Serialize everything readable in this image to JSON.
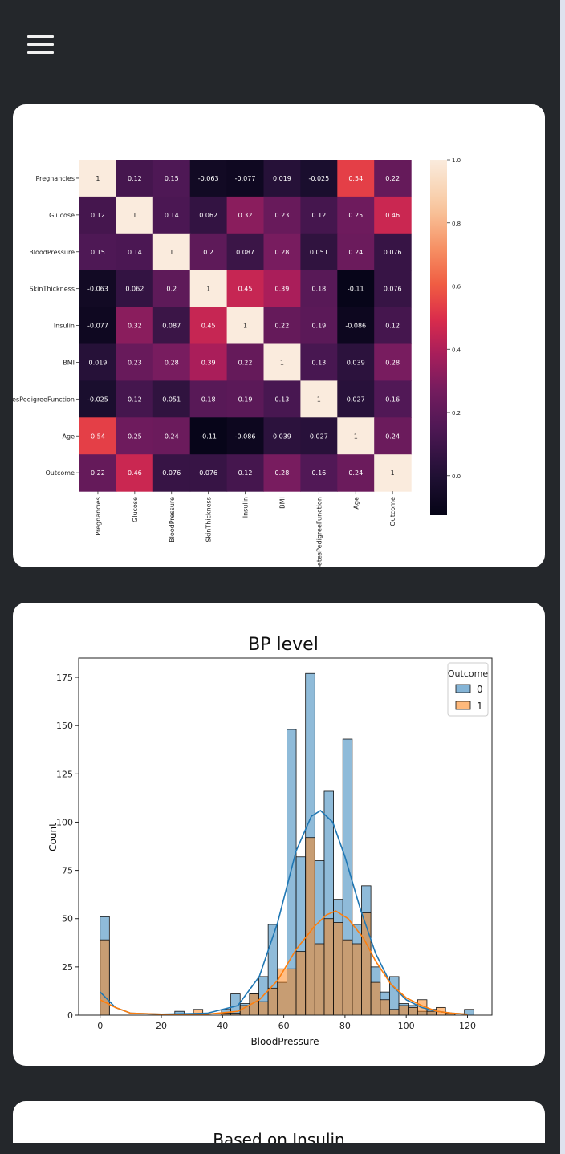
{
  "nav": {
    "menu_icon": "hamburger-icon"
  },
  "heatmap": {
    "labels": [
      "Pregnancies",
      "Glucose",
      "BloodPressure",
      "SkinThickness",
      "Insulin",
      "BMI",
      "DiabetesPedigreeFunction",
      "Age",
      "Outcome"
    ],
    "matrix": [
      [
        1,
        0.12,
        0.15,
        -0.063,
        -0.077,
        0.019,
        -0.025,
        0.54,
        0.22
      ],
      [
        0.12,
        1,
        0.14,
        0.062,
        0.32,
        0.23,
        0.12,
        0.25,
        0.46
      ],
      [
        0.15,
        0.14,
        1,
        0.2,
        0.087,
        0.28,
        0.051,
        0.24,
        0.076
      ],
      [
        -0.063,
        0.062,
        0.2,
        1,
        0.45,
        0.39,
        0.18,
        -0.11,
        0.076
      ],
      [
        -0.077,
        0.32,
        0.087,
        0.45,
        1,
        0.22,
        0.19,
        -0.086,
        0.12
      ],
      [
        0.019,
        0.23,
        0.28,
        0.39,
        0.22,
        1,
        0.13,
        0.039,
        0.28
      ],
      [
        -0.025,
        0.12,
        0.051,
        0.18,
        0.19,
        0.13,
        1,
        0.027,
        0.16
      ],
      [
        0.54,
        0.25,
        0.24,
        -0.11,
        -0.086,
        0.039,
        0.027,
        1,
        0.24
      ],
      [
        0.22,
        0.46,
        0.076,
        0.076,
        0.12,
        0.28,
        0.16,
        0.24,
        1
      ]
    ],
    "colorbar_ticks": [
      "1.0",
      "0.8",
      "0.6",
      "0.4",
      "0.2",
      "0.0"
    ]
  },
  "bp_chart": {
    "title": "BP level",
    "xlabel": "BloodPressure",
    "ylabel": "Count",
    "legend_title": "Outcome",
    "legend_entries": [
      "0",
      "1"
    ],
    "colors": {
      "series0": "#1f77b4",
      "series1": "#ff7f0e"
    }
  },
  "chart_data": {
    "type": "bar",
    "title": "BP level",
    "xlabel": "BloodPressure",
    "ylabel": "Count",
    "xlim": [
      -7,
      128
    ],
    "ylim": [
      0,
      185
    ],
    "x_ticks": [
      0,
      20,
      40,
      60,
      80,
      100,
      120
    ],
    "y_ticks": [
      0,
      25,
      50,
      75,
      100,
      125,
      150,
      175
    ],
    "bin_width": 3.05,
    "bin_starts": [
      0,
      24.4,
      30.5,
      36.6,
      39.65,
      42.7,
      45.75,
      48.8,
      51.85,
      54.9,
      57.95,
      61,
      64.05,
      67.1,
      70.15,
      73.2,
      76.25,
      79.3,
      82.35,
      85.4,
      88.45,
      91.5,
      94.55,
      97.6,
      100.65,
      103.7,
      106.75,
      109.8,
      112.85,
      119
    ],
    "series": [
      {
        "name": "0",
        "values": [
          51,
          2,
          0,
          0,
          3,
          11,
          6,
          11,
          20,
          47,
          17,
          148,
          82,
          177,
          80,
          116,
          60,
          143,
          47,
          67,
          25,
          12,
          20,
          6,
          5,
          2,
          3,
          0,
          1,
          3
        ]
      },
      {
        "name": "1",
        "values": [
          39,
          0,
          3,
          0,
          1,
          1,
          5,
          11,
          7,
          14,
          24,
          24,
          33,
          92,
          37,
          50,
          48,
          39,
          37,
          53,
          17,
          8,
          3,
          5,
          4,
          8,
          2,
          4,
          1,
          0
        ]
      }
    ],
    "kde": [
      {
        "name": "0",
        "points": [
          [
            0,
            12
          ],
          [
            5,
            4
          ],
          [
            10,
            1
          ],
          [
            20,
            0.5
          ],
          [
            35,
            1
          ],
          [
            45,
            5
          ],
          [
            52,
            20
          ],
          [
            58,
            48
          ],
          [
            64,
            85
          ],
          [
            69,
            103
          ],
          [
            72,
            106
          ],
          [
            76,
            100
          ],
          [
            80,
            82
          ],
          [
            85,
            55
          ],
          [
            90,
            32
          ],
          [
            95,
            16
          ],
          [
            100,
            8
          ],
          [
            105,
            4
          ],
          [
            110,
            2
          ],
          [
            115,
            1
          ],
          [
            120,
            0.5
          ]
        ]
      },
      {
        "name": "1",
        "points": [
          [
            0,
            8
          ],
          [
            5,
            4
          ],
          [
            10,
            1
          ],
          [
            20,
            0.5
          ],
          [
            35,
            0.5
          ],
          [
            45,
            2
          ],
          [
            52,
            8
          ],
          [
            58,
            18
          ],
          [
            64,
            34
          ],
          [
            70,
            46
          ],
          [
            74,
            52
          ],
          [
            77,
            54
          ],
          [
            81,
            50
          ],
          [
            86,
            40
          ],
          [
            90,
            28
          ],
          [
            95,
            16
          ],
          [
            100,
            9
          ],
          [
            105,
            5
          ],
          [
            110,
            2
          ],
          [
            115,
            1
          ],
          [
            120,
            0.5
          ]
        ]
      }
    ],
    "legend": "top-right",
    "grid": false
  },
  "insulin_card": {
    "title": "Based on Insulin"
  }
}
